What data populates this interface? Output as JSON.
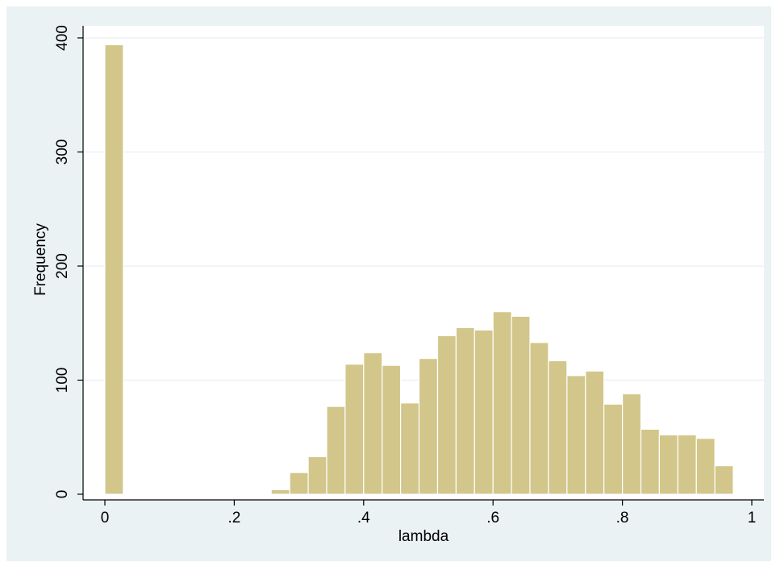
{
  "chart_data": {
    "type": "bar",
    "xlabel": "lambda",
    "ylabel": "Frequency",
    "xlim": [
      0,
      1
    ],
    "ylim": [
      0,
      400
    ],
    "grid": true,
    "x_ticks": [
      "0",
      ".2",
      ".4",
      ".6",
      ".8",
      "1"
    ],
    "y_ticks": [
      "0",
      "100",
      "200",
      "300",
      "400"
    ],
    "bins": [
      {
        "x0": 0.0,
        "x1": 0.0286,
        "value": 394
      },
      {
        "x0": 0.2571,
        "x1": 0.2857,
        "value": 4
      },
      {
        "x0": 0.2857,
        "x1": 0.3143,
        "value": 19
      },
      {
        "x0": 0.3143,
        "x1": 0.3429,
        "value": 33
      },
      {
        "x0": 0.3429,
        "x1": 0.3714,
        "value": 77
      },
      {
        "x0": 0.3714,
        "x1": 0.4,
        "value": 114
      },
      {
        "x0": 0.4,
        "x1": 0.4286,
        "value": 124
      },
      {
        "x0": 0.4286,
        "x1": 0.4571,
        "value": 113
      },
      {
        "x0": 0.4571,
        "x1": 0.4857,
        "value": 80
      },
      {
        "x0": 0.4857,
        "x1": 0.5143,
        "value": 119
      },
      {
        "x0": 0.5143,
        "x1": 0.5429,
        "value": 139
      },
      {
        "x0": 0.5429,
        "x1": 0.5714,
        "value": 146
      },
      {
        "x0": 0.5714,
        "x1": 0.6,
        "value": 144
      },
      {
        "x0": 0.6,
        "x1": 0.6286,
        "value": 160
      },
      {
        "x0": 0.6286,
        "x1": 0.6571,
        "value": 156
      },
      {
        "x0": 0.6571,
        "x1": 0.6857,
        "value": 133
      },
      {
        "x0": 0.6857,
        "x1": 0.7143,
        "value": 117
      },
      {
        "x0": 0.7143,
        "x1": 0.7429,
        "value": 104
      },
      {
        "x0": 0.7429,
        "x1": 0.7714,
        "value": 108
      },
      {
        "x0": 0.7714,
        "x1": 0.8,
        "value": 79
      },
      {
        "x0": 0.8,
        "x1": 0.8286,
        "value": 88
      },
      {
        "x0": 0.8286,
        "x1": 0.8571,
        "value": 57
      },
      {
        "x0": 0.8571,
        "x1": 0.8857,
        "value": 52
      },
      {
        "x0": 0.8857,
        "x1": 0.9143,
        "value": 52
      },
      {
        "x0": 0.9143,
        "x1": 0.9429,
        "value": 49
      },
      {
        "x0": 0.9429,
        "x1": 0.9714,
        "value": 25
      }
    ],
    "colors": {
      "bar_fill": "#d2c68a",
      "bar_stroke": "#ffffff",
      "background": "#eaf2f3",
      "plot_background": "#ffffff",
      "grid": "#eaf2f3",
      "axis": "#000000"
    }
  }
}
